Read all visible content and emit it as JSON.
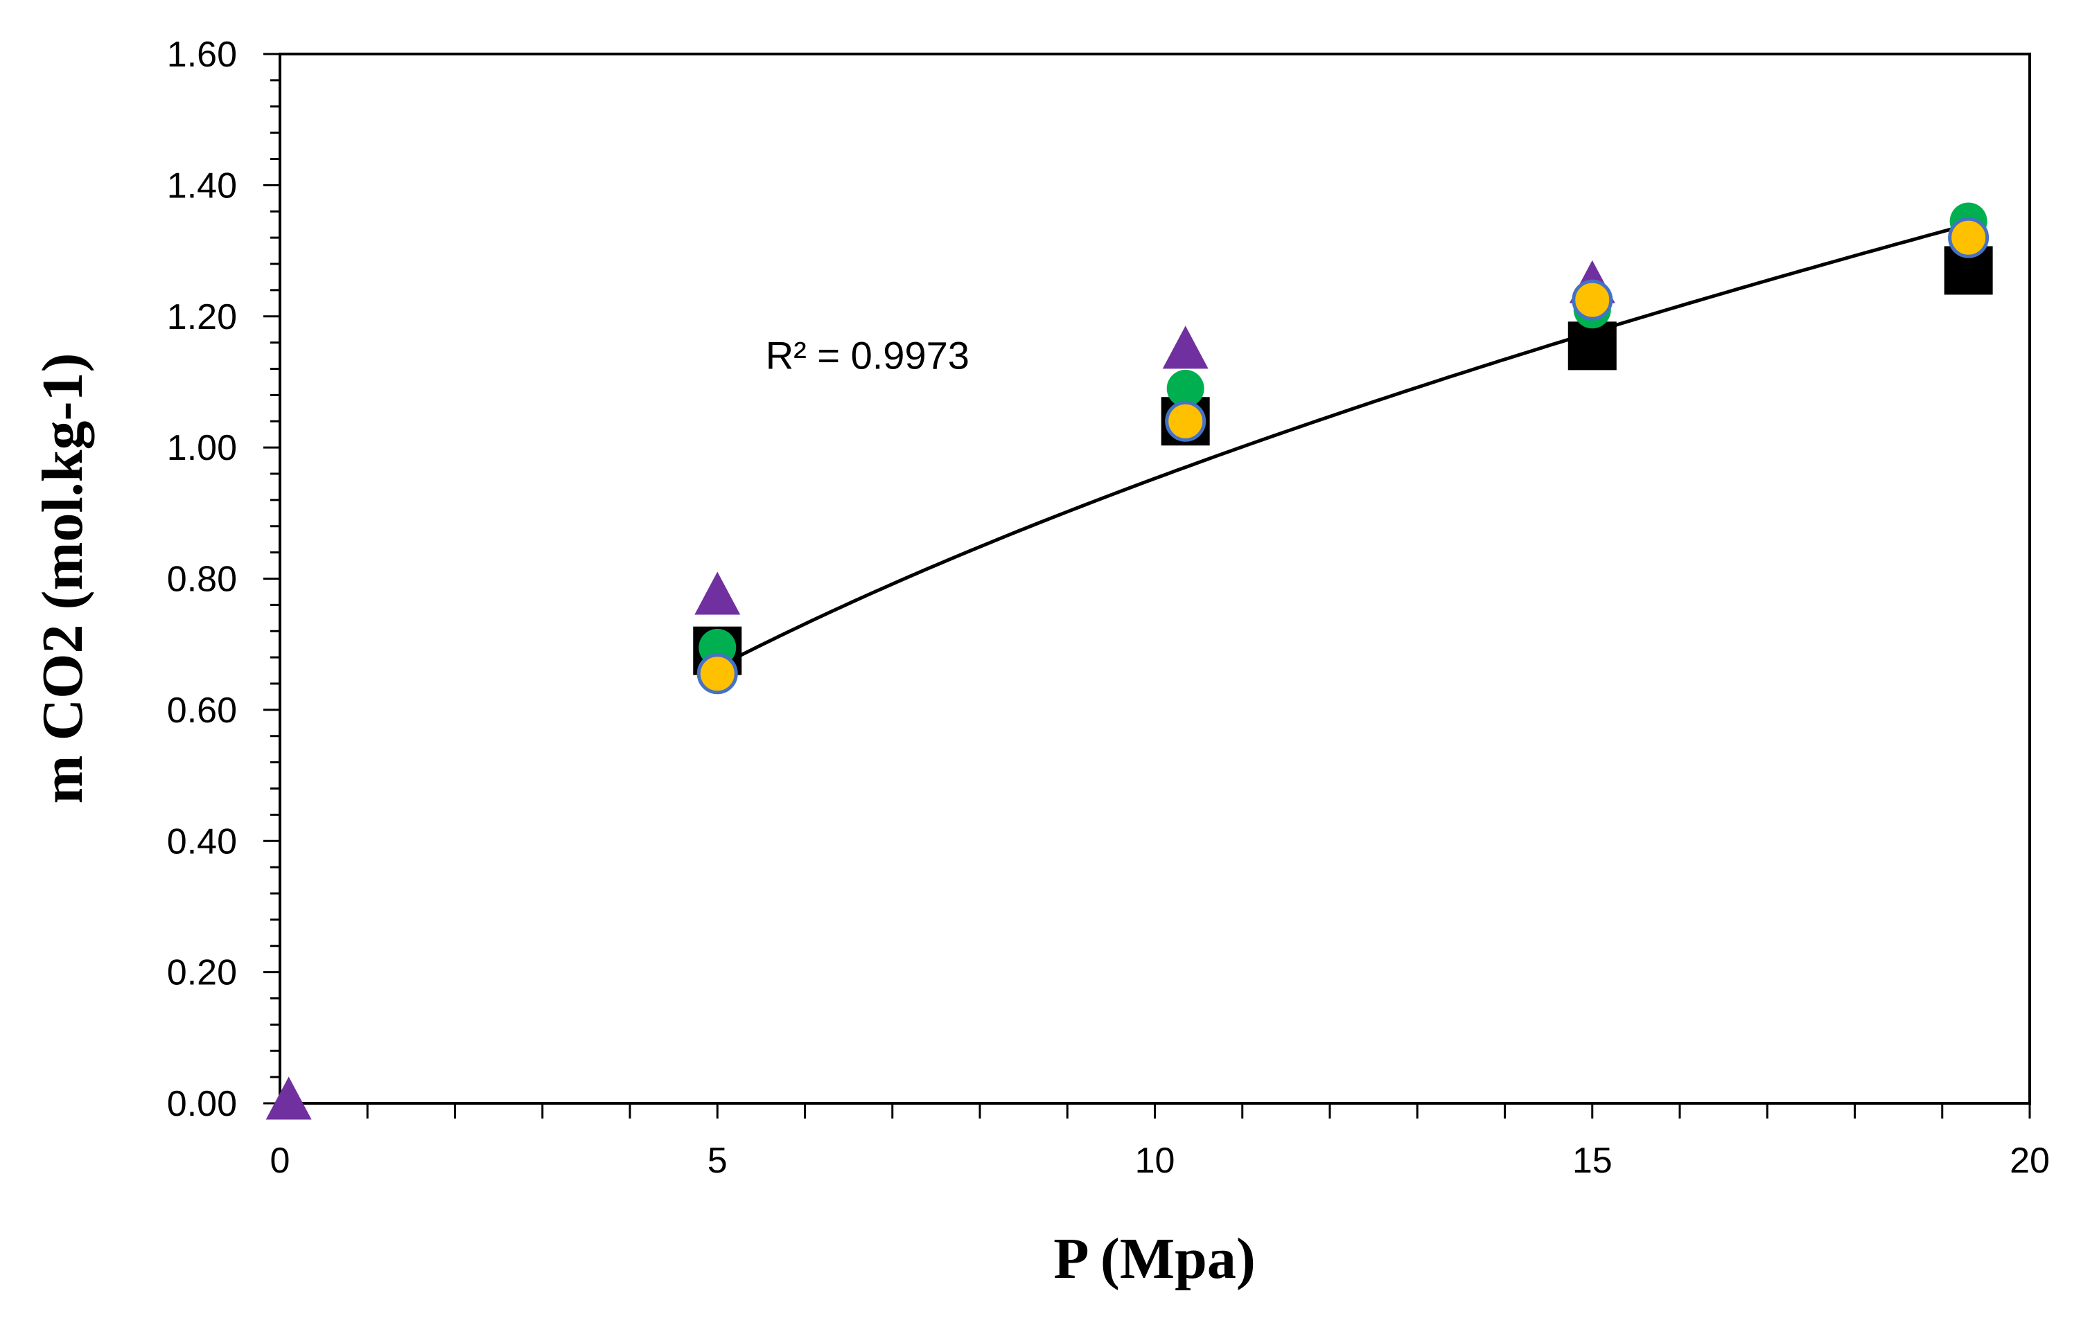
{
  "chart_data": {
    "type": "scatter",
    "title": "",
    "xlabel": "P (Mpa)",
    "ylabel": "m CO2 (mol.kg-1)",
    "xlim": [
      0,
      20
    ],
    "ylim": [
      0,
      1.6
    ],
    "x_ticks": [
      0,
      5,
      10,
      15,
      20
    ],
    "x_tick_labels": [
      "0",
      "5",
      "10",
      "15",
      "20"
    ],
    "y_ticks": [
      0,
      0.2,
      0.4,
      0.6,
      0.8,
      1.0,
      1.2,
      1.4,
      1.6
    ],
    "y_tick_labels": [
      "0.00",
      "0.20",
      "0.40",
      "0.60",
      "0.80",
      "1.00",
      "1.20",
      "1.40",
      "1.60"
    ],
    "grid": false,
    "legend": "none",
    "series": [
      {
        "name": "triangle-series",
        "marker": "triangle",
        "color": "#7030A0",
        "x": [
          0.1,
          5.0,
          10.35,
          15.0
        ],
        "y": [
          0.0,
          0.77,
          1.145,
          1.245
        ]
      },
      {
        "name": "square-series",
        "marker": "square",
        "color": "#000000",
        "x": [
          5.0,
          10.35,
          15.0,
          19.3
        ],
        "y": [
          0.69,
          1.04,
          1.155,
          1.27
        ]
      },
      {
        "name": "green-circle-series",
        "marker": "circle",
        "color": "#00B050",
        "x": [
          5.0,
          10.35,
          15.0,
          19.3
        ],
        "y": [
          0.695,
          1.09,
          1.21,
          1.345
        ]
      },
      {
        "name": "yellow-circle-series",
        "marker": "circle",
        "color": "#FFC000",
        "edge": "#4472C4",
        "x": [
          5.0,
          10.35,
          15.0,
          19.3
        ],
        "y": [
          0.655,
          1.04,
          1.225,
          1.32
        ]
      }
    ],
    "trendline": {
      "type": "power",
      "color": "#000000",
      "x_range": [
        5.0,
        19.3
      ],
      "points": [
        [
          5.0,
          0.665
        ],
        [
          10.35,
          1.025
        ],
        [
          15.0,
          1.215
        ],
        [
          19.3,
          1.34
        ]
      ]
    },
    "annotations": [
      {
        "text": "R² = 0.9973",
        "x": 5.55,
        "y": 1.12
      }
    ]
  }
}
